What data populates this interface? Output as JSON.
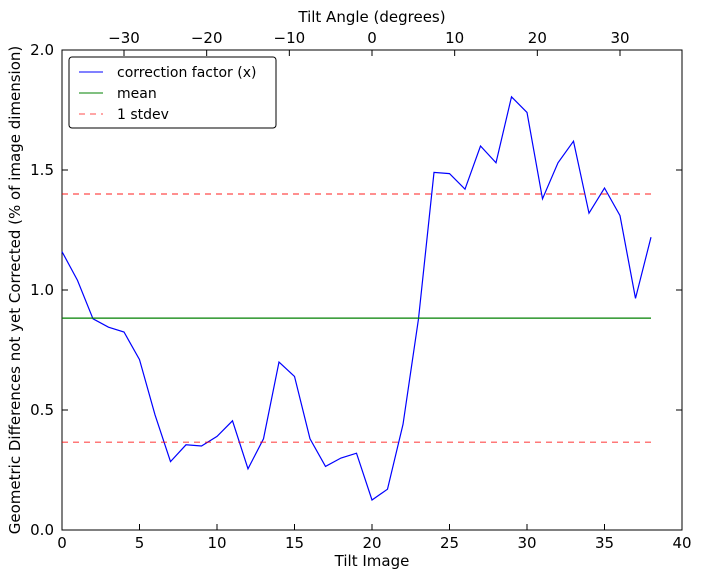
{
  "chart_data": {
    "type": "line",
    "top_axis_label": "Tilt Angle (degrees)",
    "xlabel": "Tilt Image",
    "ylabel": "Geometric Differences not yet Corrected (% of image dimension)",
    "xlim": [
      0,
      40
    ],
    "ylim": [
      0.0,
      2.0
    ],
    "top_xlim": [
      -37.5,
      37.5
    ],
    "x_ticks": [
      "0",
      "5",
      "10",
      "15",
      "20",
      "25",
      "30",
      "35",
      "40"
    ],
    "y_ticks": [
      "0.0",
      "0.5",
      "1.0",
      "1.5",
      "2.0"
    ],
    "top_ticks": [
      "−30",
      "−20",
      "−10",
      "0",
      "10",
      "20",
      "30"
    ],
    "grid": false,
    "legend_position": "upper-left",
    "series": [
      {
        "name": "correction factor (x)",
        "color": "#0000ff",
        "style": "solid",
        "x": [
          0,
          1,
          2,
          3,
          4,
          5,
          6,
          7,
          8,
          9,
          10,
          11,
          12,
          13,
          14,
          15,
          16,
          17,
          18,
          19,
          20,
          21,
          22,
          23,
          24,
          25,
          26,
          27,
          28,
          29,
          30,
          31,
          32,
          33,
          34,
          35,
          36,
          37,
          38
        ],
        "y": [
          1.16,
          1.04,
          0.88,
          0.845,
          0.825,
          0.71,
          0.48,
          0.285,
          0.355,
          0.35,
          0.39,
          0.455,
          0.255,
          0.38,
          0.7,
          0.64,
          0.38,
          0.265,
          0.3,
          0.32,
          0.125,
          0.17,
          0.44,
          0.88,
          1.49,
          1.485,
          1.42,
          1.6,
          1.53,
          1.805,
          1.74,
          1.38,
          1.53,
          1.62,
          1.32,
          1.425,
          1.31,
          0.965,
          1.22
        ]
      },
      {
        "name": "mean",
        "color": "#008000",
        "style": "solid",
        "x": [
          0,
          38
        ],
        "y": [
          0.883,
          0.883
        ]
      },
      {
        "name": "1 stdev",
        "color": "#ff0000",
        "style": "dashed",
        "x": [
          0,
          38
        ],
        "y": [
          1.4,
          1.4
        ]
      },
      {
        "color": "#ff0000",
        "style": "dashed",
        "x": [
          0,
          38
        ],
        "y": [
          0.366,
          0.366
        ]
      }
    ]
  }
}
